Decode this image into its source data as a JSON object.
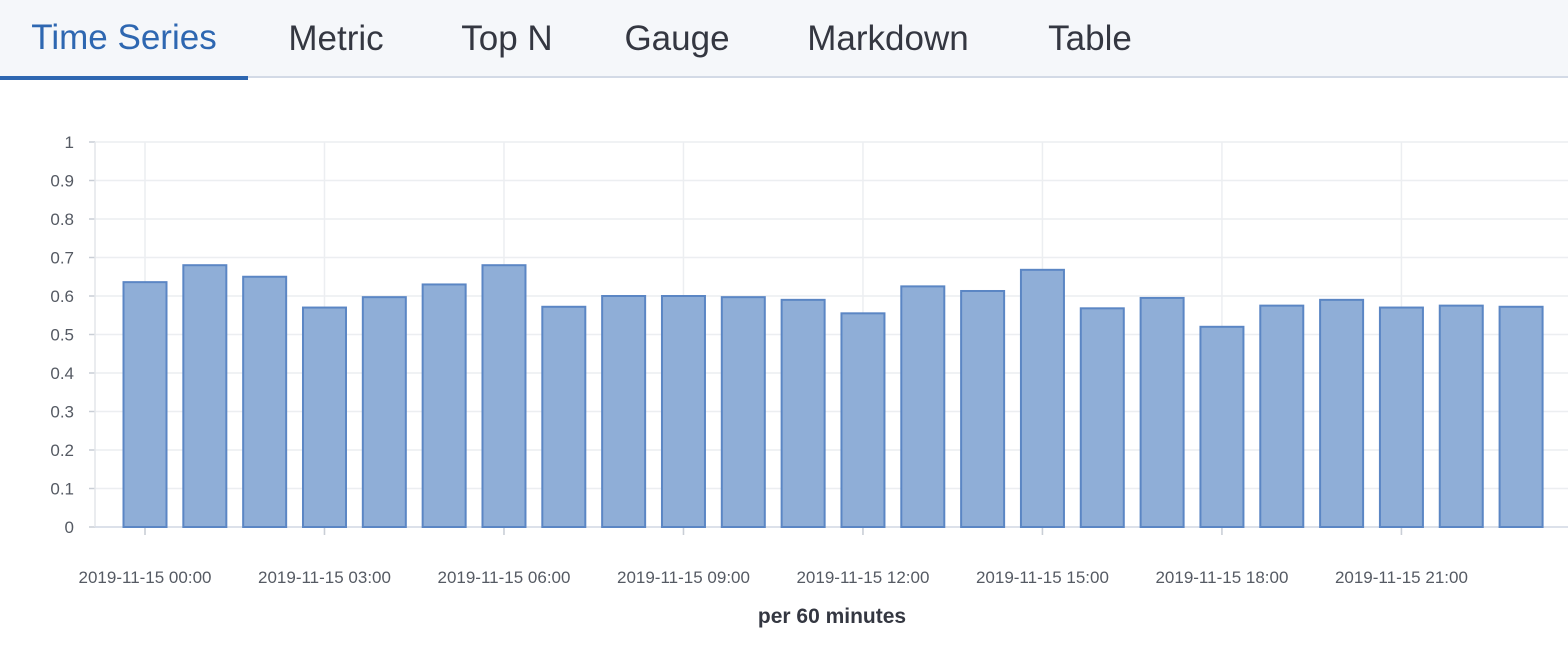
{
  "tabs": [
    {
      "label": "Time Series",
      "active": true
    },
    {
      "label": "Metric",
      "active": false
    },
    {
      "label": "Top N",
      "active": false
    },
    {
      "label": "Gauge",
      "active": false
    },
    {
      "label": "Markdown",
      "active": false
    },
    {
      "label": "Table",
      "active": false
    }
  ],
  "colors": {
    "accent": "#2e67b1",
    "bar_fill": "#8faed7",
    "bar_stroke": "#5b86c4"
  },
  "chart_data": {
    "type": "bar",
    "x": [
      "2019-11-15 00:00",
      "2019-11-15 01:00",
      "2019-11-15 02:00",
      "2019-11-15 03:00",
      "2019-11-15 04:00",
      "2019-11-15 05:00",
      "2019-11-15 06:00",
      "2019-11-15 07:00",
      "2019-11-15 08:00",
      "2019-11-15 09:00",
      "2019-11-15 10:00",
      "2019-11-15 11:00",
      "2019-11-15 12:00",
      "2019-11-15 13:00",
      "2019-11-15 14:00",
      "2019-11-15 15:00",
      "2019-11-15 16:00",
      "2019-11-15 17:00",
      "2019-11-15 18:00",
      "2019-11-15 19:00",
      "2019-11-15 20:00",
      "2019-11-15 21:00",
      "2019-11-15 22:00",
      "2019-11-15 23:00"
    ],
    "values": [
      0.636,
      0.68,
      0.65,
      0.57,
      0.597,
      0.63,
      0.68,
      0.572,
      0.6,
      0.6,
      0.597,
      0.59,
      0.555,
      0.625,
      0.613,
      0.668,
      0.568,
      0.595,
      0.52,
      0.575,
      0.59,
      0.57,
      0.575,
      0.572
    ],
    "x_ticks": [
      "2019-11-15 00:00",
      "2019-11-15 03:00",
      "2019-11-15 06:00",
      "2019-11-15 09:00",
      "2019-11-15 12:00",
      "2019-11-15 15:00",
      "2019-11-15 18:00",
      "2019-11-15 21:00"
    ],
    "y_ticks": [
      "0",
      "0.1",
      "0.2",
      "0.3",
      "0.4",
      "0.5",
      "0.6",
      "0.7",
      "0.8",
      "0.9",
      "1"
    ],
    "ylim": [
      0,
      1
    ],
    "xlabel": "per 60 minutes",
    "ylabel": "",
    "grid": true
  }
}
